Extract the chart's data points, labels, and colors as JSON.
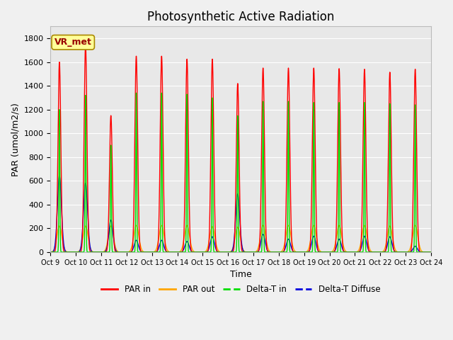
{
  "title": "Photosynthetic Active Radiation",
  "ylabel": "PAR (umol/m2/s)",
  "xlabel": "Time",
  "annotation": "VR_met",
  "ylim": [
    0,
    1900
  ],
  "yticks": [
    0,
    200,
    400,
    600,
    800,
    1000,
    1200,
    1400,
    1600,
    1800
  ],
  "xtick_labels": [
    "Oct 9",
    "Oct 10",
    "Oct 11",
    "Oct 12",
    "Oct 13",
    "Oct 14",
    "Oct 15",
    "Oct 16",
    "Oct 17",
    "Oct 18",
    "Oct 19",
    "Oct 20",
    "Oct 21",
    "Oct 22",
    "Oct 23",
    "Oct 24"
  ],
  "colors": {
    "PAR_in": "#ff0000",
    "PAR_out": "#ffa500",
    "Delta_T_in": "#00dd00",
    "Delta_T_Diffuse": "#0000dd"
  },
  "legend_labels": [
    "PAR in",
    "PAR out",
    "Delta-T in",
    "Delta-T Diffuse"
  ],
  "background_color": "#e8e8e8",
  "fig_background": "#f0f0f0",
  "n_days": 15,
  "peaks_PAR_in": [
    1600,
    1750,
    1150,
    1650,
    1650,
    1625,
    1625,
    1420,
    1550,
    1550,
    1550,
    1545,
    1540,
    1515,
    1540
  ],
  "peaks_PAR_out": [
    220,
    220,
    220,
    225,
    225,
    225,
    215,
    210,
    225,
    225,
    225,
    225,
    225,
    220,
    225
  ],
  "peaks_Delta_T_in": [
    1200,
    1320,
    900,
    1340,
    1340,
    1330,
    1300,
    1150,
    1270,
    1270,
    1260,
    1260,
    1260,
    1250,
    1240
  ],
  "peaks_Delta_T_Diff": [
    640,
    580,
    270,
    100,
    100,
    90,
    130,
    490,
    150,
    110,
    135,
    110,
    135,
    130,
    50
  ],
  "day_offsets": [
    0.35,
    0.38,
    0.38,
    0.38,
    0.38,
    0.38,
    0.38,
    0.38,
    0.38,
    0.38,
    0.38,
    0.38,
    0.38,
    0.38,
    0.38
  ],
  "title_fontsize": 12,
  "label_fontsize": 9,
  "tick_fontsize": 8
}
